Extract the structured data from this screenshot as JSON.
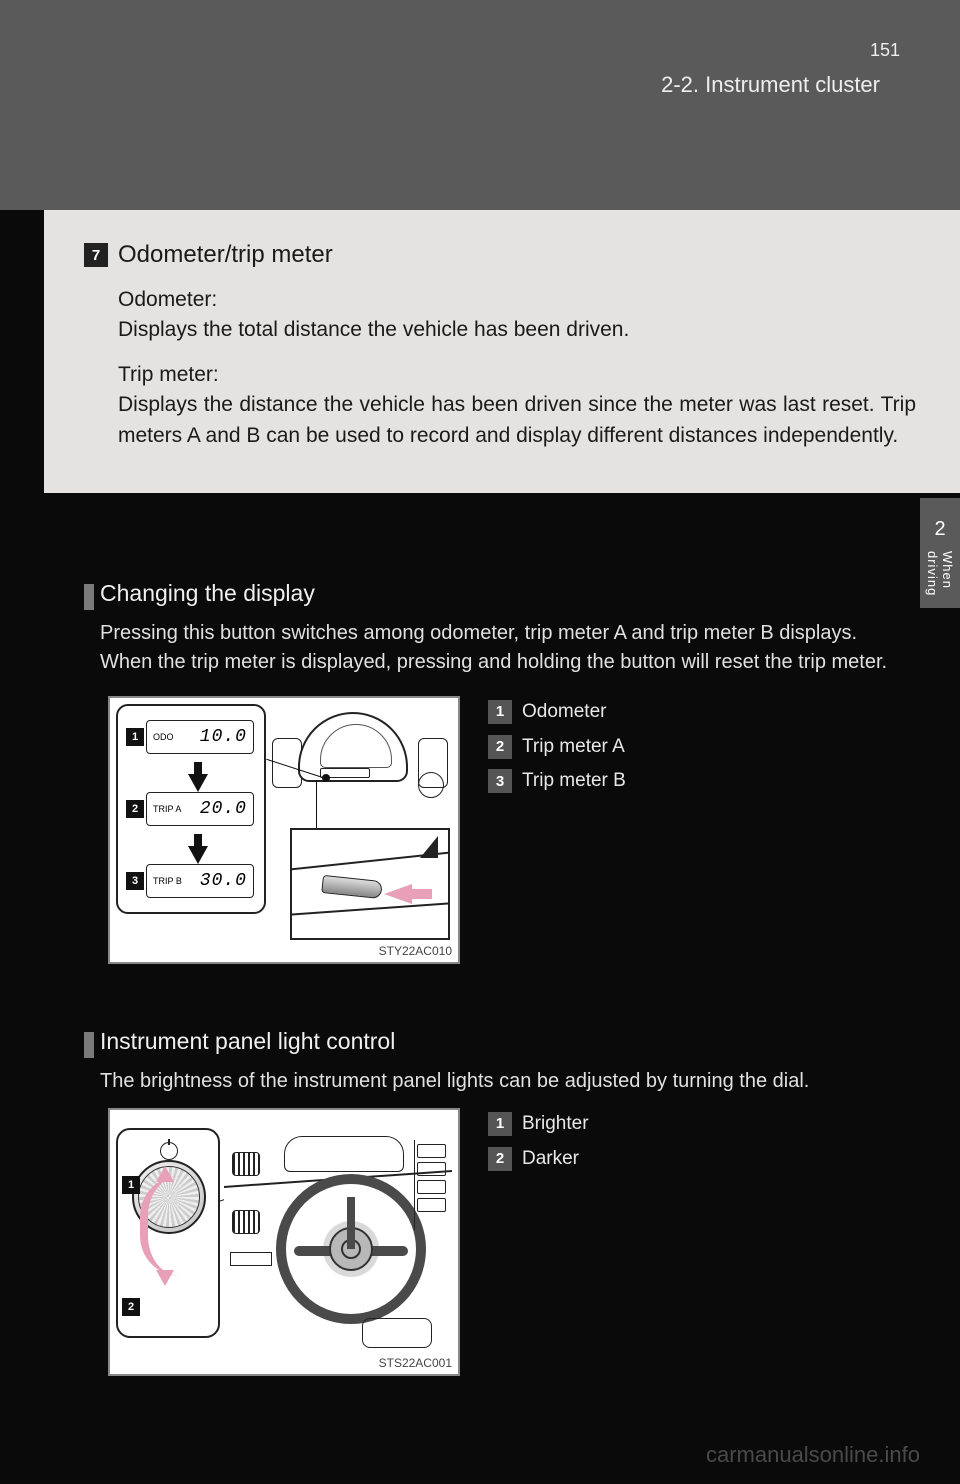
{
  "header": {
    "section_ref": "2-2. Instrument cluster",
    "page_number": "151"
  },
  "side_tab": {
    "number": "2",
    "label": "When driving"
  },
  "gray_box": {
    "item_number": "7",
    "title": "Odometer/trip meter",
    "odometer_label": "Odometer:",
    "odometer_text": "Displays the total distance the vehicle has been driven.",
    "trip_label": "Trip meter:",
    "trip_text": "Displays the distance the vehicle has been driven since the meter was last reset. Trip meters A and B can be used to record and display different distances independently."
  },
  "section1": {
    "title": "Changing the display",
    "body": "Pressing this button switches among odometer, trip meter A and trip meter B displays. When the trip meter is displayed, pressing and holding the button will reset the trip meter.",
    "legend": [
      "Odometer",
      "Trip meter A",
      "Trip meter B"
    ],
    "figure_caption": "STY22AC010",
    "displays": {
      "d1": {
        "label": "ODO",
        "value": "10.0"
      },
      "d2": {
        "label": "TRIP A",
        "value": "20.0"
      },
      "d3": {
        "label": "TRIP B",
        "value": "30.0"
      }
    }
  },
  "section2": {
    "title": "Instrument panel light control",
    "body": "The brightness of the instrument panel lights can be adjusted by turning the dial.",
    "legend": [
      "Brighter",
      "Darker"
    ],
    "figure_caption": "STS22AC001"
  },
  "watermark": "carmanualsonline.info",
  "colors": {
    "page_bg": "#0a0a0a",
    "header_band": "#5a5a5a",
    "gray_box_bg": "#e4e3e1",
    "accent_arrow": "#e8a0b8"
  }
}
